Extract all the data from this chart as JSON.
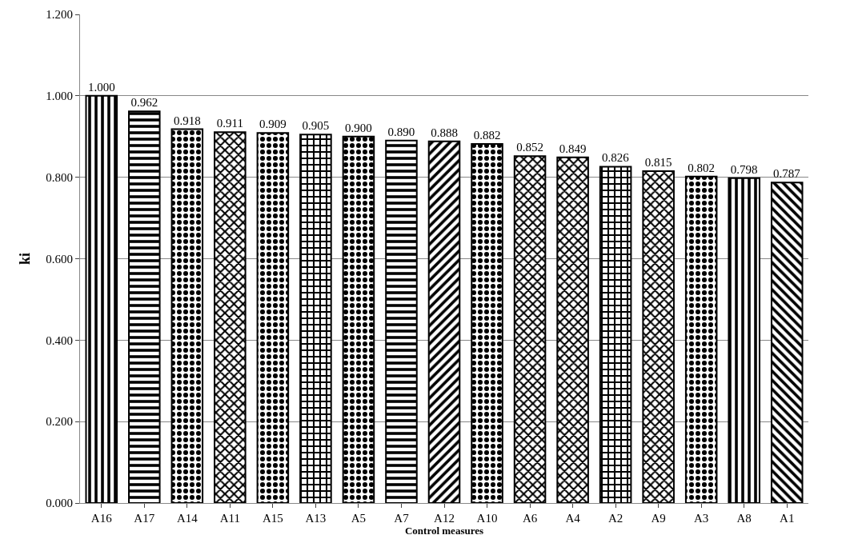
{
  "chart_data": {
    "type": "bar",
    "xlabel": "Control measures",
    "ylabel": "ki",
    "categories": [
      "A16",
      "A17",
      "A14",
      "A11",
      "A15",
      "A13",
      "A5",
      "A7",
      "A12",
      "A10",
      "A6",
      "A4",
      "A2",
      "A9",
      "A3",
      "A8",
      "A1"
    ],
    "values": [
      1.0,
      0.962,
      0.918,
      0.911,
      0.909,
      0.905,
      0.9,
      0.89,
      0.888,
      0.882,
      0.852,
      0.849,
      0.826,
      0.815,
      0.802,
      0.798,
      0.787
    ],
    "value_labels": [
      "1.000",
      "0.962",
      "0.918",
      "0.911",
      "0.909",
      "0.905",
      "0.900",
      "0.890",
      "0.888",
      "0.882",
      "0.852",
      "0.849",
      "0.826",
      "0.815",
      "0.802",
      "0.798",
      "0.787"
    ],
    "color": "#000000",
    "ylim": [
      0,
      1.2
    ],
    "yticks": [
      {
        "value": 0,
        "label": "0.000"
      },
      {
        "value": 0.2,
        "label": "0.200"
      },
      {
        "value": 0.4,
        "label": "0.400"
      },
      {
        "value": 0.6,
        "label": "0.600"
      },
      {
        "value": 0.8,
        "label": "0.800"
      },
      {
        "value": 1.0,
        "label": "1.000"
      },
      {
        "value": 1.2,
        "label": "1.200"
      }
    ],
    "grid": "y",
    "legend": false
  }
}
